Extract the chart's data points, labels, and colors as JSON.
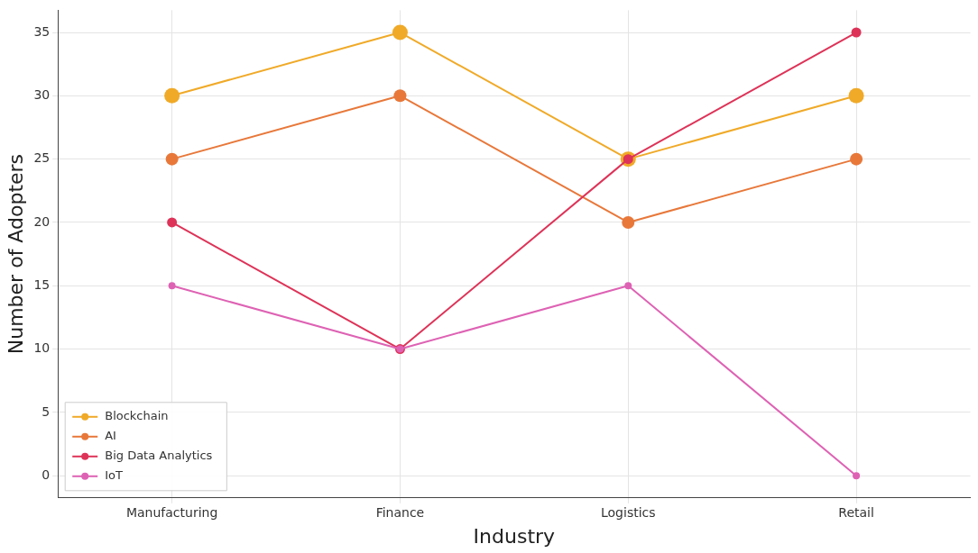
{
  "chart_data": {
    "type": "line",
    "xlabel": "Industry",
    "ylabel": "Number of Adopters",
    "categories": [
      "Manufacturing",
      "Finance",
      "Logistics",
      "Retail"
    ],
    "series": [
      {
        "name": "Blockchain",
        "color": "#f0aa28",
        "values": [
          30,
          35,
          25,
          30
        ]
      },
      {
        "name": "AI",
        "color": "#e8783a",
        "values": [
          25,
          30,
          20,
          25
        ]
      },
      {
        "name": "Big Data Analytics",
        "color": "#de3358",
        "values": [
          20,
          10,
          25,
          35
        ]
      },
      {
        "name": "IoT",
        "color": "#de62b4",
        "values": [
          15,
          10,
          15,
          0
        ]
      }
    ],
    "ylim": [
      -1.75,
      36.75
    ],
    "yticks": [
      0,
      5,
      10,
      15,
      20,
      25,
      30,
      35
    ],
    "grid": true,
    "legend": "bottom left",
    "marker": "circle",
    "line_style": "solid"
  }
}
